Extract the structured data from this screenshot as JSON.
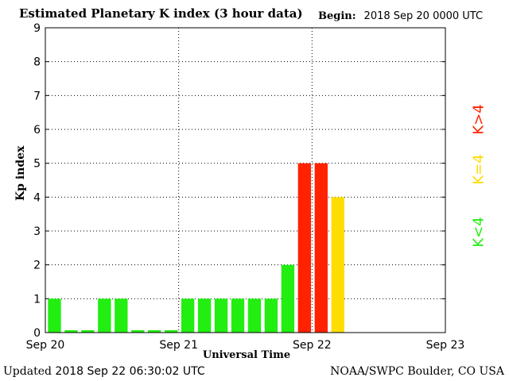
{
  "header": {
    "title": "Estimated Planetary K index (3 hour data)",
    "begin_label": "Begin:",
    "begin_value": "2018 Sep 20 0000 UTC"
  },
  "footer": {
    "updated_label": "Updated",
    "updated_value": "2018 Sep 22 06:30:02 UTC",
    "credit": "NOAA/SWPC Boulder, CO USA"
  },
  "legend": [
    {
      "label": "K<4",
      "color": "#22ee11"
    },
    {
      "label": "K=4",
      "color": "#ffdd00"
    },
    {
      "label": "K>4",
      "color": "#ff2200"
    }
  ],
  "chart_data": {
    "type": "bar",
    "title": "Estimated Planetary K index (3 hour data)",
    "xlabel": "Universal Time",
    "ylabel": "Kp index",
    "ylim": [
      0,
      9
    ],
    "yticks": [
      0,
      1,
      2,
      3,
      4,
      5,
      6,
      7,
      8,
      9
    ],
    "x_tick_labels": [
      "Sep 20",
      "Sep 21",
      "Sep 22",
      "Sep 23"
    ],
    "grid": true,
    "values": [
      1,
      0,
      0,
      1,
      1,
      0,
      0,
      0,
      1,
      1,
      1,
      1,
      1,
      1,
      2,
      5,
      5,
      4
    ]
  }
}
